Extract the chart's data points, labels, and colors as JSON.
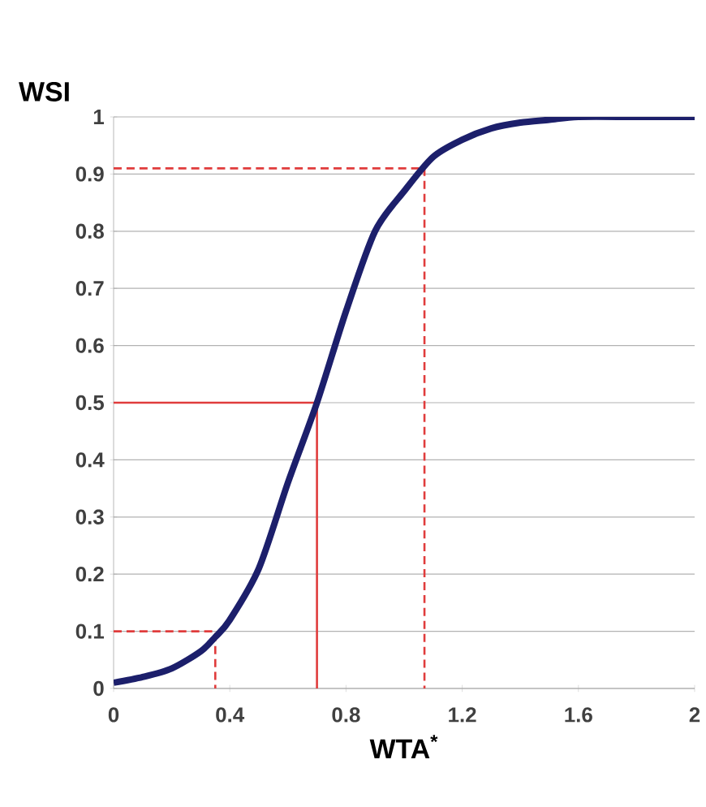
{
  "chart_data": {
    "type": "line",
    "ylabel": "WSI",
    "xlabel": "WTA$^{*}$",
    "xlim": [
      0,
      2
    ],
    "ylim": [
      0,
      1
    ],
    "xticks": [
      0,
      0.4,
      0.8,
      1.2,
      1.6,
      2
    ],
    "yticks": [
      0,
      0.1,
      0.2,
      0.3,
      0.4,
      0.5,
      0.6,
      0.7,
      0.8,
      0.9,
      1
    ],
    "grid": "y",
    "series": [
      {
        "color": "#1c1f6b",
        "line_style": "solid",
        "x": [
          0,
          0.1,
          0.2,
          0.3,
          0.35,
          0.4,
          0.5,
          0.6,
          0.7,
          0.8,
          0.9,
          1.0,
          1.1,
          1.2,
          1.3,
          1.4,
          1.5,
          1.6,
          1.8,
          2.0
        ],
        "values": [
          0.01,
          0.02,
          0.035,
          0.065,
          0.09,
          0.12,
          0.21,
          0.36,
          0.5,
          0.66,
          0.8,
          0.87,
          0.93,
          0.96,
          0.98,
          0.99,
          0.995,
          1.0,
          1.0,
          1.0
        ]
      },
      {
        "color": "#e03c3c",
        "line_style": "dashed",
        "x": [
          0,
          0.35,
          0.35
        ],
        "values": [
          0.1,
          0.1,
          0
        ]
      },
      {
        "color": "#e03c3c",
        "line_style": "solid",
        "x": [
          0,
          0.7,
          0.7
        ],
        "values": [
          0.5,
          0.5,
          0
        ]
      },
      {
        "color": "#e03c3c",
        "line_style": "dashed",
        "x": [
          0,
          1.07,
          1.07
        ],
        "values": [
          0.91,
          0.91,
          0
        ]
      }
    ]
  }
}
